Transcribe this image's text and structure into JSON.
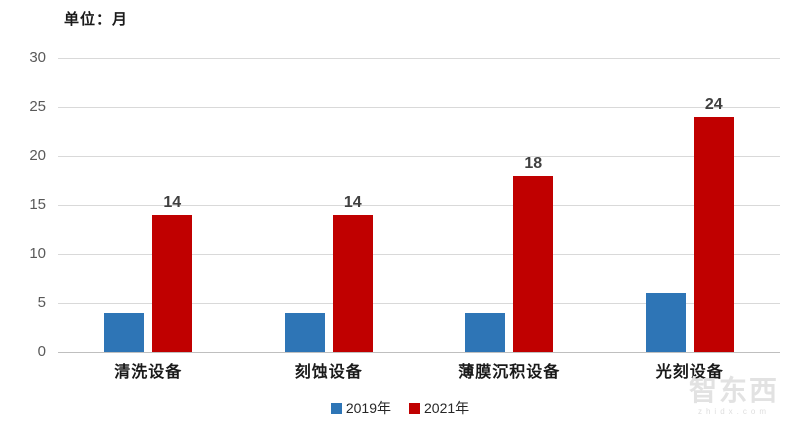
{
  "unit_label": "单位：月",
  "colors": {
    "series_2019": "#2E75B6",
    "series_2021": "#C00000",
    "gridline": "#D9D9D9",
    "axis_line": "#BFBFBF",
    "data_label": "#404040",
    "tick_label": "#595959",
    "watermark": "#E2E2E2"
  },
  "chart_data": {
    "type": "bar",
    "title": "",
    "unit_note": "单位：月",
    "categories": [
      "清洗设备",
      "刻蚀设备",
      "薄膜沉积设备",
      "光刻设备"
    ],
    "series": [
      {
        "name": "2019年",
        "color": "#2E75B6",
        "values": [
          4,
          4,
          4,
          6
        ],
        "show_labels": false
      },
      {
        "name": "2021年",
        "color": "#C00000",
        "values": [
          14,
          14,
          18,
          24
        ],
        "show_labels": true,
        "data_labels": [
          "14",
          "14",
          "18",
          "24"
        ]
      }
    ],
    "xlabel": "",
    "ylabel": "",
    "ylim": [
      0,
      30
    ],
    "yticks": [
      0,
      5,
      10,
      15,
      20,
      25,
      30
    ],
    "grid": true,
    "legend_position": "bottom"
  },
  "legend": {
    "items": [
      {
        "label": "2019年",
        "color": "#2E75B6"
      },
      {
        "label": "2021年",
        "color": "#C00000"
      }
    ]
  },
  "watermark": {
    "logo_text": "智东西",
    "sub_text": "zhidx.com"
  }
}
